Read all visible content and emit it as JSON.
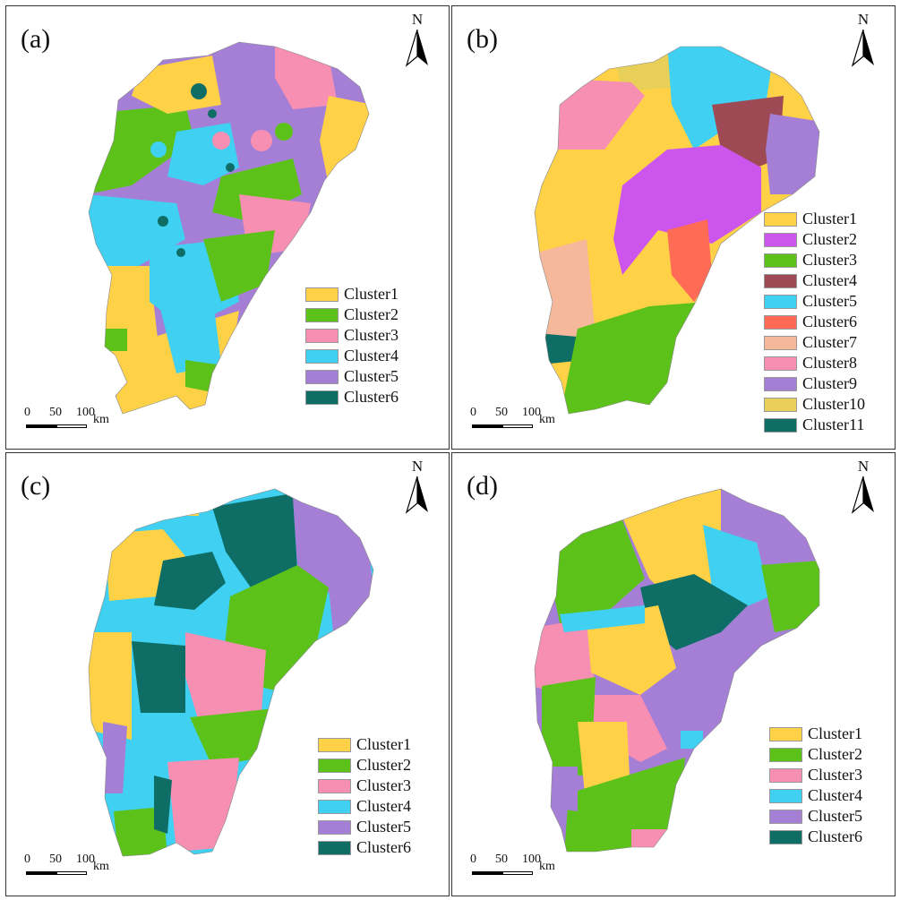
{
  "north_label": "N",
  "scale": {
    "t0": "0",
    "t1": "50",
    "t2": "100",
    "unit": "km"
  },
  "panels": {
    "a": {
      "label": "(a)",
      "legend": [
        {
          "label": "Cluster1",
          "color": "#FFD147"
        },
        {
          "label": "Cluster2",
          "color": "#5CC219"
        },
        {
          "label": "Cluster3",
          "color": "#F78FB3"
        },
        {
          "label": "Cluster4",
          "color": "#3FD0F2"
        },
        {
          "label": "Cluster5",
          "color": "#A57FD6"
        },
        {
          "label": "Cluster6",
          "color": "#0E6E66"
        }
      ]
    },
    "b": {
      "label": "(b)",
      "legend": [
        {
          "label": "Cluster1",
          "color": "#FFD147"
        },
        {
          "label": "Cluster2",
          "color": "#CC55EE"
        },
        {
          "label": "Cluster3",
          "color": "#5CC219"
        },
        {
          "label": "Cluster4",
          "color": "#9E4A55"
        },
        {
          "label": "Cluster5",
          "color": "#3FD0F2"
        },
        {
          "label": "Cluster6",
          "color": "#FF6B55"
        },
        {
          "label": "Cluster7",
          "color": "#F6B89A"
        },
        {
          "label": "Cluster8",
          "color": "#F78FB3"
        },
        {
          "label": "Cluster9",
          "color": "#A57FD6"
        },
        {
          "label": "Cluster10",
          "color": "#E8CF57"
        },
        {
          "label": "Cluster11",
          "color": "#0E6E66"
        }
      ]
    },
    "c": {
      "label": "(c)",
      "legend": [
        {
          "label": "Cluster1",
          "color": "#FFD147"
        },
        {
          "label": "Cluster2",
          "color": "#5CC219"
        },
        {
          "label": "Cluster3",
          "color": "#F78FB3"
        },
        {
          "label": "Cluster4",
          "color": "#3FD0F2"
        },
        {
          "label": "Cluster5",
          "color": "#A57FD6"
        },
        {
          "label": "Cluster6",
          "color": "#0E6E66"
        }
      ]
    },
    "d": {
      "label": "(d)",
      "legend": [
        {
          "label": "Cluster1",
          "color": "#FFD147"
        },
        {
          "label": "Cluster2",
          "color": "#5CC219"
        },
        {
          "label": "Cluster3",
          "color": "#F78FB3"
        },
        {
          "label": "Cluster4",
          "color": "#3FD0F2"
        },
        {
          "label": "Cluster5",
          "color": "#A57FD6"
        },
        {
          "label": "Cluster6",
          "color": "#0E6E66"
        }
      ]
    }
  }
}
